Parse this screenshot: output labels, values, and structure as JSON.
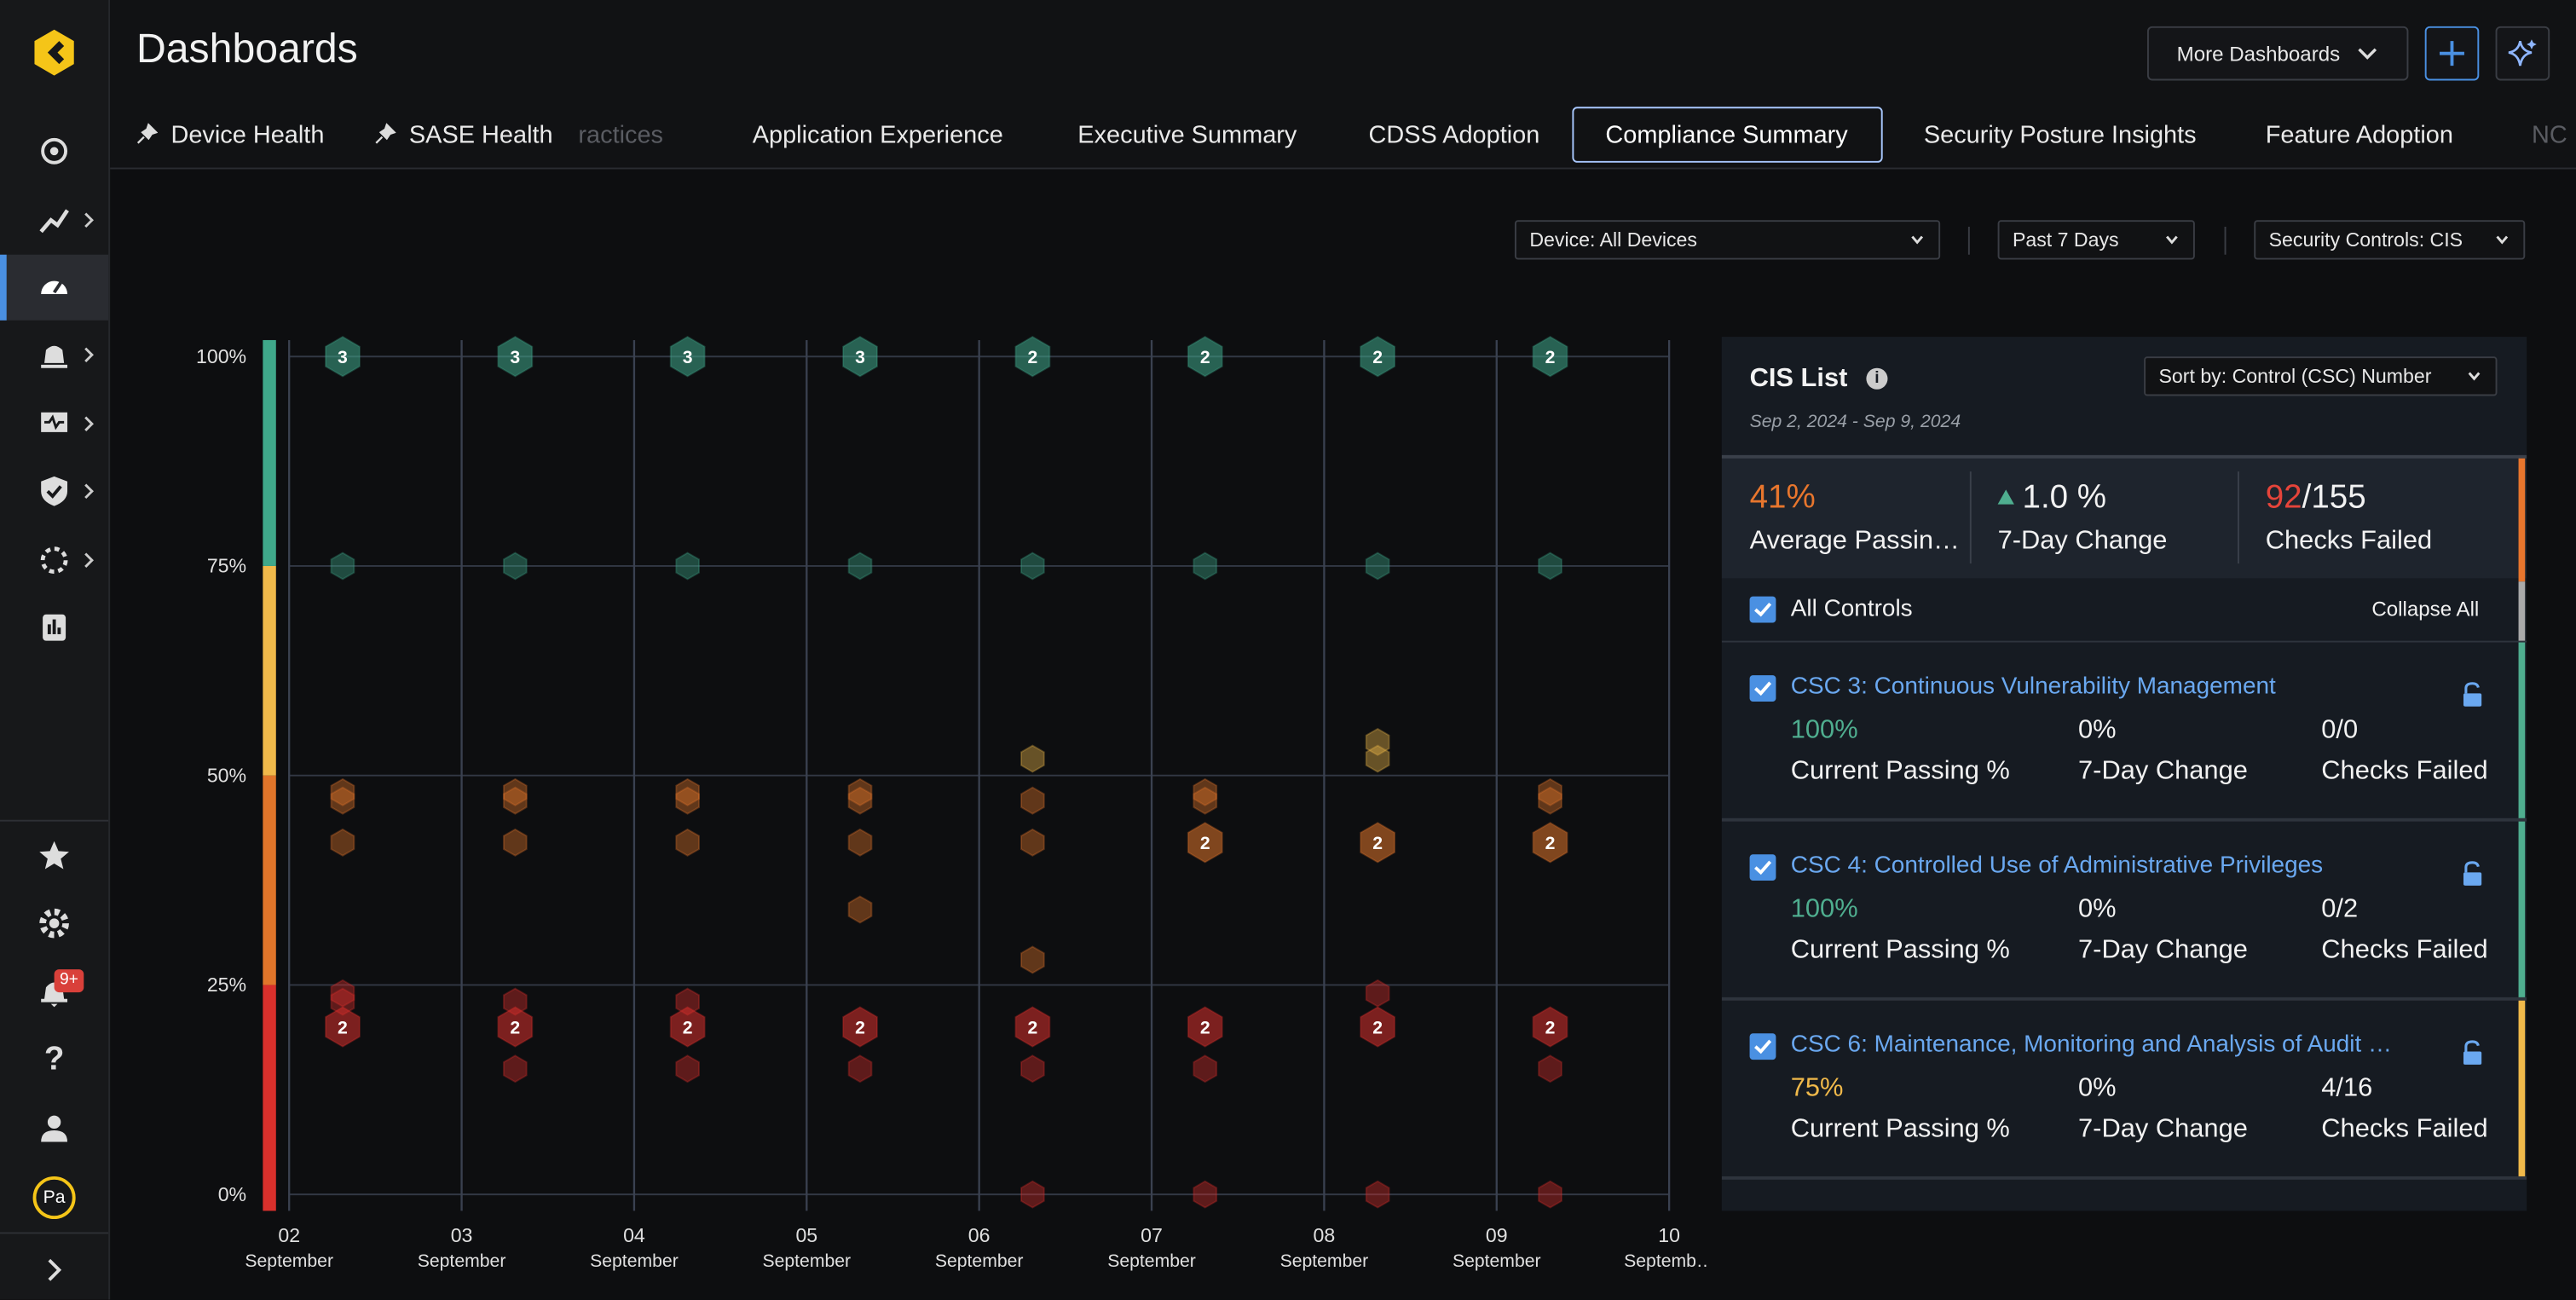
{
  "header": {
    "title": "Dashboards",
    "more_dashboards": "More Dashboards"
  },
  "sidebar": {
    "notification_badge": "9+",
    "avatar": "Pa"
  },
  "tabs": [
    {
      "label": "Device Health",
      "pinned": true
    },
    {
      "label": "SASE Health",
      "pinned": true
    },
    {
      "label": "ractices"
    },
    {
      "label": "Application Experience"
    },
    {
      "label": "Executive Summary"
    },
    {
      "label": "CDSS Adoption"
    },
    {
      "label": "Compliance Summary",
      "active": true
    },
    {
      "label": "Security Posture Insights"
    },
    {
      "label": "Feature Adoption"
    },
    {
      "label": "NC"
    }
  ],
  "filters": [
    "Device: All Devices",
    "Past 7 Days",
    "Security Controls: CIS"
  ],
  "chart": {
    "type": "scatter",
    "xlim": [
      2,
      10
    ],
    "ylim": [
      0,
      100
    ],
    "yticks": [
      {
        "value": 0,
        "label": "0%"
      },
      {
        "value": 25,
        "label": "25%"
      },
      {
        "value": 50,
        "label": "50%"
      },
      {
        "value": 75,
        "label": "75%"
      },
      {
        "value": 100,
        "label": "100%"
      }
    ],
    "xticks": [
      {
        "value": 2,
        "label": "02",
        "sublabel": "September"
      },
      {
        "value": 3,
        "label": "03",
        "sublabel": "September"
      },
      {
        "value": 4,
        "label": "04",
        "sublabel": "September"
      },
      {
        "value": 5,
        "label": "05",
        "sublabel": "September"
      },
      {
        "value": 6,
        "label": "06",
        "sublabel": "September"
      },
      {
        "value": 7,
        "label": "07",
        "sublabel": "September"
      },
      {
        "value": 8,
        "label": "08",
        "sublabel": "September"
      },
      {
        "value": 9,
        "label": "09",
        "sublabel": "September"
      },
      {
        "value": 10,
        "label": "10",
        "sublabel": "Septemb…"
      }
    ],
    "bands": [
      {
        "from": 0,
        "to": 25,
        "color": "#d9302c"
      },
      {
        "from": 25,
        "to": 50,
        "color": "#e0752a"
      },
      {
        "from": 50,
        "to": 75,
        "color": "#f0b94a"
      },
      {
        "from": 75,
        "to": 100,
        "color": "#3fa88a"
      }
    ],
    "grid": true,
    "points": [
      {
        "x": 2.31,
        "y": 100,
        "count": 3
      },
      {
        "x": 2.31,
        "y": 75
      },
      {
        "x": 2.31,
        "y": 48
      },
      {
        "x": 2.31,
        "y": 47
      },
      {
        "x": 2.31,
        "y": 42
      },
      {
        "x": 2.31,
        "y": 24
      },
      {
        "x": 2.31,
        "y": 23
      },
      {
        "x": 2.31,
        "y": 20,
        "count": 2
      },
      {
        "x": 3.31,
        "y": 100,
        "count": 3
      },
      {
        "x": 3.31,
        "y": 75
      },
      {
        "x": 3.31,
        "y": 48
      },
      {
        "x": 3.31,
        "y": 47
      },
      {
        "x": 3.31,
        "y": 42
      },
      {
        "x": 3.31,
        "y": 23
      },
      {
        "x": 3.31,
        "y": 20,
        "count": 2
      },
      {
        "x": 3.31,
        "y": 15
      },
      {
        "x": 4.31,
        "y": 100,
        "count": 3
      },
      {
        "x": 4.31,
        "y": 75
      },
      {
        "x": 4.31,
        "y": 48
      },
      {
        "x": 4.31,
        "y": 47
      },
      {
        "x": 4.31,
        "y": 42
      },
      {
        "x": 4.31,
        "y": 23
      },
      {
        "x": 4.31,
        "y": 20,
        "count": 2
      },
      {
        "x": 4.31,
        "y": 15
      },
      {
        "x": 5.31,
        "y": 100,
        "count": 3
      },
      {
        "x": 5.31,
        "y": 75
      },
      {
        "x": 5.31,
        "y": 48
      },
      {
        "x": 5.31,
        "y": 47
      },
      {
        "x": 5.31,
        "y": 42
      },
      {
        "x": 5.31,
        "y": 34
      },
      {
        "x": 5.31,
        "y": 20,
        "count": 2
      },
      {
        "x": 5.31,
        "y": 15
      },
      {
        "x": 6.31,
        "y": 100,
        "count": 2
      },
      {
        "x": 6.31,
        "y": 75
      },
      {
        "x": 6.31,
        "y": 52
      },
      {
        "x": 6.31,
        "y": 47
      },
      {
        "x": 6.31,
        "y": 42
      },
      {
        "x": 6.31,
        "y": 28
      },
      {
        "x": 6.31,
        "y": 20,
        "count": 2
      },
      {
        "x": 6.31,
        "y": 15
      },
      {
        "x": 6.31,
        "y": 0
      },
      {
        "x": 7.31,
        "y": 100,
        "count": 2
      },
      {
        "x": 7.31,
        "y": 75
      },
      {
        "x": 7.31,
        "y": 48
      },
      {
        "x": 7.31,
        "y": 47
      },
      {
        "x": 7.31,
        "y": 42,
        "count": 2
      },
      {
        "x": 7.31,
        "y": 20,
        "count": 2
      },
      {
        "x": 7.31,
        "y": 15
      },
      {
        "x": 7.31,
        "y": 0
      },
      {
        "x": 8.31,
        "y": 100,
        "count": 2
      },
      {
        "x": 8.31,
        "y": 75
      },
      {
        "x": 8.31,
        "y": 54
      },
      {
        "x": 8.31,
        "y": 52
      },
      {
        "x": 8.31,
        "y": 42,
        "count": 2
      },
      {
        "x": 8.31,
        "y": 24
      },
      {
        "x": 8.31,
        "y": 20,
        "count": 2
      },
      {
        "x": 8.31,
        "y": 0
      },
      {
        "x": 9.31,
        "y": 100,
        "count": 2
      },
      {
        "x": 9.31,
        "y": 75
      },
      {
        "x": 9.31,
        "y": 48
      },
      {
        "x": 9.31,
        "y": 47
      },
      {
        "x": 9.31,
        "y": 42,
        "count": 2
      },
      {
        "x": 9.31,
        "y": 20,
        "count": 2
      },
      {
        "x": 9.31,
        "y": 15
      },
      {
        "x": 9.31,
        "y": 0
      }
    ]
  },
  "cis_list": {
    "title": "CIS List",
    "sort": "Sort by: Control (CSC) Number",
    "date_range": "Sep 2, 2024 - Sep 9, 2024",
    "summary": {
      "color": "#e8762d",
      "items": [
        {
          "value": "41%",
          "label": "Average Passin…",
          "color": "#e8762d"
        },
        {
          "value": "1.0 %",
          "label": "7-Day Change",
          "trend": "up"
        },
        {
          "value": "92",
          "total": "/155",
          "label": "Checks Failed",
          "color": "#e5443a"
        }
      ]
    },
    "all_controls": "All Controls",
    "collapse_all": "Collapse All",
    "controls": [
      {
        "title": "CSC 3: Continuous Vulnerability Management",
        "passing": "100%",
        "passing_label": "Current Passing %",
        "change": "0%",
        "change_label": "7-Day Change",
        "failed": "0/0",
        "failed_label": "Checks Failed",
        "color": "#4fae8f"
      },
      {
        "title": "CSC 4: Controlled Use of Administrative Privileges",
        "passing": "100%",
        "passing_label": "Current Passing %",
        "change": "0%",
        "change_label": "7-Day Change",
        "failed": "0/2",
        "failed_label": "Checks Failed",
        "color": "#4fae8f"
      },
      {
        "title": "CSC 6: Maintenance, Monitoring and Analysis of Audit …",
        "passing": "75%",
        "passing_label": "Current Passing %",
        "change": "0%",
        "change_label": "7-Day Change",
        "failed": "4/16",
        "failed_label": "Checks Failed",
        "color": "#f0b94a"
      }
    ]
  }
}
